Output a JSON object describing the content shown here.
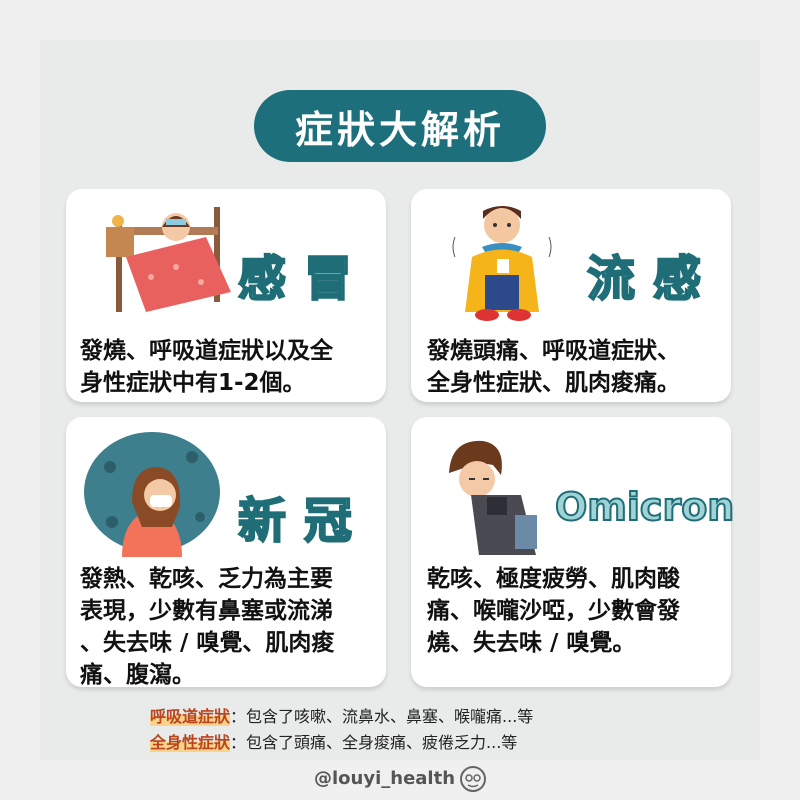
{
  "title": "症狀大解析",
  "cards": [
    {
      "name": "感冒",
      "desc": [
        "發燒、呼吸道症狀以及全",
        "身性症狀中有1-2個。"
      ]
    },
    {
      "name": "流感",
      "desc": [
        "發燒頭痛、呼吸道症狀、",
        "全身性症狀、肌肉痠痛。"
      ]
    },
    {
      "name": "新冠",
      "desc": [
        "發熱、乾咳、乏力為主要",
        "表現，少數有鼻塞或流涕",
        "、失去味 / 嗅覺、肌肉痠",
        "痛、腹瀉。"
      ]
    },
    {
      "name": "Omicron",
      "desc": [
        "乾咳、極度疲勞、肌肉酸",
        "痛、喉嚨沙啞，少數會發",
        "燒、失去味 / 嗅覺。"
      ]
    }
  ],
  "notes": [
    {
      "term": "呼吸道症狀",
      "text": "：包含了咳嗽、流鼻水、鼻塞、喉嚨痛...等"
    },
    {
      "term": "全身性症狀",
      "text": "：包含了頭痛、全身痠痛、疲倦乏力...等"
    }
  ],
  "handle": "@louyi_health",
  "colors": {
    "title_bg": "#1d6f7b",
    "name_fill": "#9fd3d6",
    "name_stroke": "#1e6d77",
    "highlight": "#fbd28a",
    "highlight_text": "#b8451f"
  }
}
